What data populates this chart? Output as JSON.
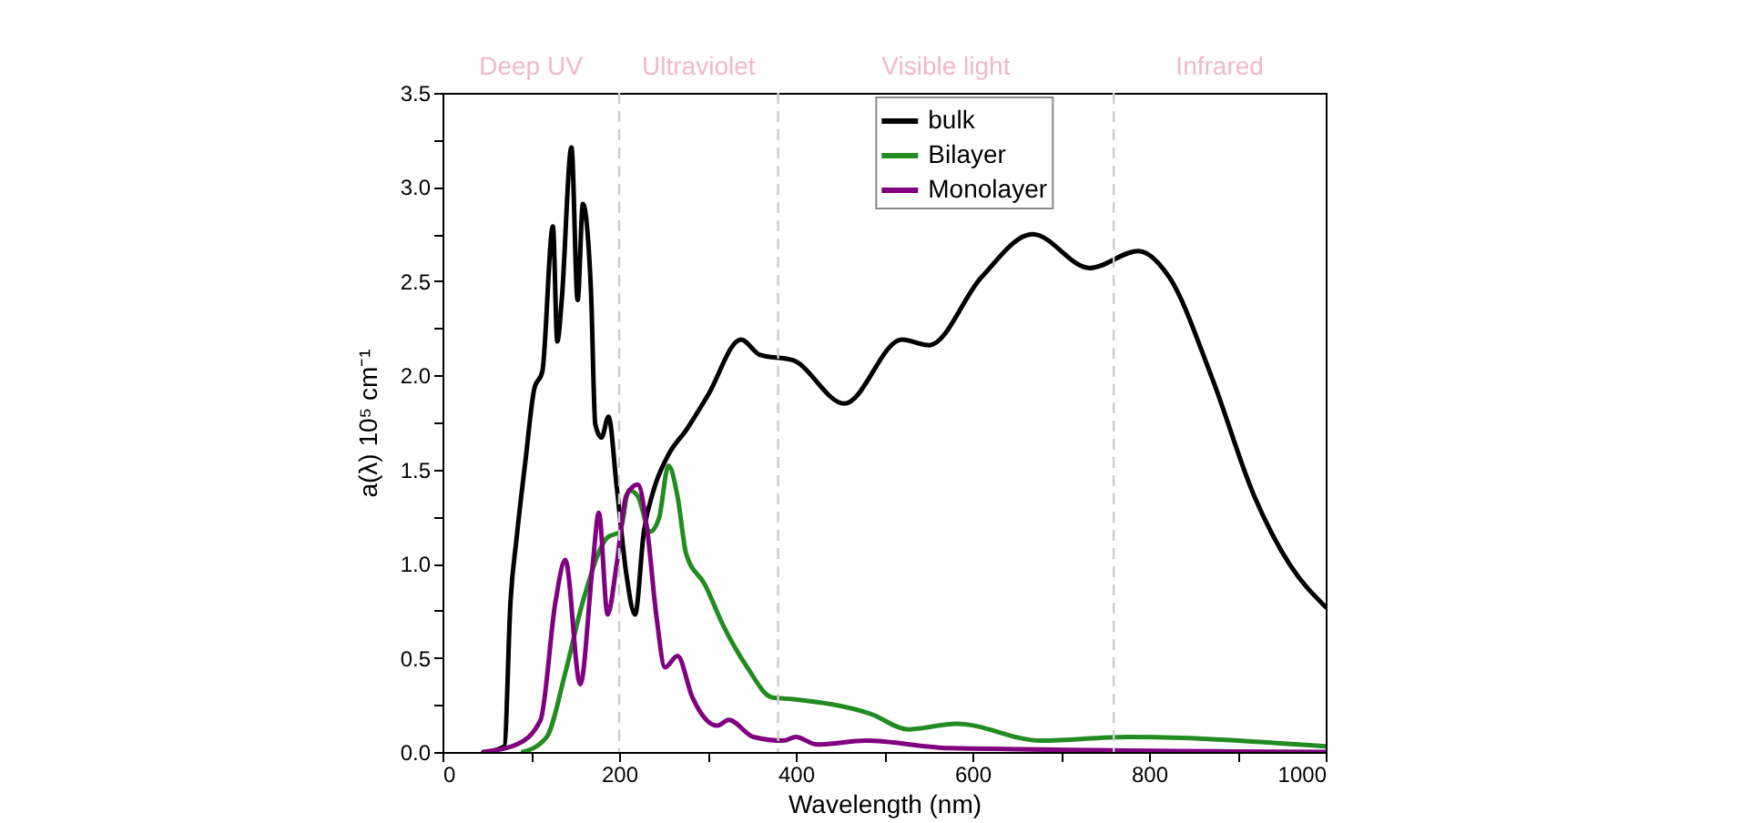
{
  "chart_data": {
    "type": "line",
    "xlabel": "Wavelength (nm)",
    "ylabel": "a(λ) 10⁵ cm⁻¹",
    "xlim": [
      0,
      1000
    ],
    "ylim": [
      0,
      3.5
    ],
    "xticks": [
      0,
      {
        "value": 100,
        "label": null
      },
      200,
      {
        "value": 300,
        "label": null
      },
      400,
      {
        "value": 500,
        "label": null
      },
      600,
      {
        "value": 700,
        "label": null
      },
      800,
      {
        "value": 900,
        "label": null
      },
      1000
    ],
    "yticks": [
      {
        "value": 0,
        "label": "0.0"
      },
      {
        "value": 0.25,
        "label": null
      },
      0.5,
      {
        "value": 0.75,
        "label": null
      },
      {
        "value": 1,
        "label": "1.0"
      },
      {
        "value": 1.25,
        "label": null
      },
      1.5,
      {
        "value": 1.75,
        "label": null
      },
      {
        "value": 2,
        "label": "2.0"
      },
      {
        "value": 2.25,
        "label": null
      },
      2.5,
      {
        "value": 2.75,
        "label": null
      },
      {
        "value": 3,
        "label": "3.0"
      },
      {
        "value": 3.25,
        "label": null
      },
      3.5
    ],
    "grid": false,
    "legend": "top",
    "line_style": "solid",
    "ref_lines": [
      {
        "axis": "x",
        "value": 200,
        "color": "#cccccc",
        "line_style": "dashed"
      },
      {
        "axis": "x",
        "value": 380,
        "color": "#cccccc",
        "line_style": "dashed"
      },
      {
        "axis": "x",
        "value": 760,
        "color": "#cccccc",
        "line_style": "dashed"
      }
    ],
    "annotations": [
      "Deep UV",
      "Ultraviolet",
      "Visible light",
      "Infrared"
    ],
    "series": [
      {
        "name": "bulk",
        "color": "#000000",
        "x": [
          49,
          70,
          77,
          84,
          94,
          104,
          113,
          125,
          130,
          135,
          146,
          153,
          159,
          168,
          173,
          180,
          188,
          197,
          208,
          218,
          228,
          239,
          256,
          276,
          300,
          338,
          359,
          397,
          455,
          520,
          551,
          610,
          668,
          733,
          788,
          823,
          871,
          919,
          960,
          1000
        ],
        "values": [
          0,
          0.03,
          0.8,
          1.14,
          1.55,
          1.93,
          2.02,
          2.79,
          2.18,
          2.4,
          3.21,
          2.4,
          2.91,
          2.46,
          1.74,
          1.67,
          1.78,
          1.42,
          0.95,
          0.73,
          1.17,
          1.39,
          1.58,
          1.71,
          1.89,
          2.19,
          2.11,
          2.08,
          1.85,
          2.19,
          2.16,
          2.52,
          2.75,
          2.57,
          2.66,
          2.52,
          1.99,
          1.36,
          0.99,
          0.77
        ]
      },
      {
        "name": "Bilayer",
        "color": "#228b22",
        "x": [
          91,
          118,
          139,
          159,
          187,
          201,
          211,
          221,
          235,
          245,
          256,
          266,
          276,
          297,
          318,
          345,
          373,
          397,
          486,
          527,
          582,
          678,
          775,
          1000
        ],
        "values": [
          0,
          0.08,
          0.42,
          0.8,
          1.14,
          1.17,
          1.39,
          1.36,
          1.17,
          1.24,
          1.52,
          1.36,
          1.05,
          0.89,
          0.67,
          0.45,
          0.29,
          0.28,
          0.2,
          0.12,
          0.15,
          0.06,
          0.08,
          0.03
        ]
      },
      {
        "name": "Monolayer",
        "color": "#800080",
        "x": [
          46,
          84,
          111,
          128,
          139,
          156,
          170,
          177,
          187,
          197,
          208,
          221,
          232,
          242,
          252,
          266,
          283,
          311,
          324,
          352,
          386,
          400,
          424,
          479,
          575,
          1000
        ],
        "values": [
          0,
          0.04,
          0.17,
          0.8,
          1.02,
          0.36,
          0.99,
          1.27,
          0.73,
          0.99,
          1.36,
          1.42,
          1.17,
          0.73,
          0.45,
          0.51,
          0.29,
          0.14,
          0.17,
          0.08,
          0.06,
          0.08,
          0.04,
          0.06,
          0.02,
          0
        ]
      }
    ]
  }
}
